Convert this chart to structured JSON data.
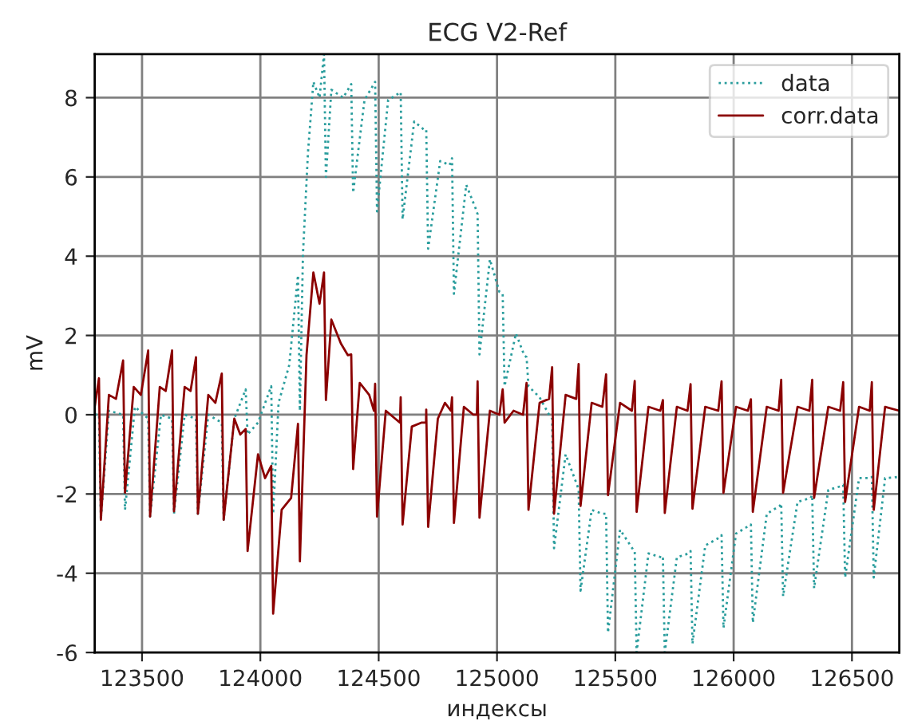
{
  "chart_data": {
    "type": "line",
    "title": "ECG V2-Ref",
    "xlabel": "индексы",
    "ylabel": "mV",
    "xlim": [
      123300,
      126700
    ],
    "xticks": [
      123500,
      124000,
      124500,
      125000,
      125500,
      126000,
      126500
    ],
    "ylim": [
      -6,
      9.1
    ],
    "yticks": [
      -6,
      -4,
      -2,
      0,
      2,
      4,
      6,
      8
    ],
    "grid": true,
    "legend": "top right",
    "series": [
      {
        "name": "data",
        "color": "#2a9d9d",
        "line_style": "dotted",
        "x": [
          123300,
          123318,
          123326,
          123360,
          123420,
          123428,
          123470,
          123526,
          123534,
          123580,
          123627,
          123635,
          123680,
          123728,
          123736,
          123780,
          123837,
          123845,
          123890,
          123938,
          123946,
          123990,
          124046,
          124054,
          124077,
          124122,
          124159,
          124167,
          124180,
          124201,
          124224,
          124250,
          124269,
          124277,
          124300,
          124350,
          124384,
          124392,
          124440,
          124485,
          124493,
          124540,
          124593,
          124601,
          124650,
          124690,
          124701,
          124709,
          124760,
          124800,
          124810,
          124818,
          124870,
          124910,
          124918,
          124926,
          124970,
          125010,
          125024,
          125032,
          125080,
          125115,
          125125,
          125133,
          125180,
          125220,
          125233,
          125241,
          125290,
          125340,
          125345,
          125353,
          125400,
          125445,
          125461,
          125469,
          125520,
          125575,
          125582,
          125590,
          125640,
          125695,
          125701,
          125709,
          125760,
          125810,
          125818,
          125826,
          125880,
          125940,
          125949,
          125957,
          126010,
          126065,
          126073,
          126081,
          126140,
          126195,
          126201,
          126209,
          126270,
          126325,
          126332,
          126340,
          126400,
          126455,
          126463,
          126471,
          126530,
          126575,
          126584,
          126592,
          126640,
          126700
        ],
        "values": [
          0.0,
          0.0,
          -2.65,
          0.1,
          0.0,
          -2.4,
          0.2,
          -0.1,
          -2.57,
          0.0,
          -0.1,
          -2.5,
          0.0,
          -0.1,
          -2.5,
          0.0,
          -0.2,
          -2.65,
          -0.1,
          0.64,
          -0.5,
          -0.2,
          0.72,
          -2.5,
          0.3,
          1.25,
          3.52,
          0.1,
          4.05,
          6.6,
          8.4,
          8.0,
          9.1,
          6.0,
          8.2,
          8.0,
          8.34,
          5.6,
          7.94,
          8.4,
          5.13,
          7.94,
          8.14,
          4.93,
          7.4,
          7.2,
          7.2,
          4.19,
          6.4,
          6.3,
          6.47,
          3.05,
          5.8,
          5.2,
          5.06,
          1.52,
          3.92,
          3.1,
          3.05,
          0.72,
          2.05,
          1.5,
          1.45,
          0.72,
          0.44,
          0.0,
          -0.1,
          -3.37,
          -1.0,
          -1.8,
          -1.9,
          -4.44,
          -2.4,
          -2.5,
          -2.5,
          -5.5,
          -2.9,
          -3.4,
          -3.44,
          -6.0,
          -3.5,
          -3.6,
          -3.57,
          -6.0,
          -3.6,
          -3.5,
          -3.44,
          -5.78,
          -3.3,
          -3.1,
          -3.04,
          -5.38,
          -3.0,
          -2.8,
          -2.77,
          -5.25,
          -2.5,
          -2.3,
          -2.24,
          -4.58,
          -2.2,
          -2.1,
          -2.03,
          -4.38,
          -1.9,
          -1.8,
          -1.77,
          -4.11,
          -1.6,
          -1.6,
          -1.57,
          -4.11,
          -1.6,
          -1.57
        ]
      },
      {
        "name": "corr.data",
        "color": "#8b0000",
        "line_style": "solid",
        "x": [
          123300,
          123318,
          123326,
          123360,
          123390,
          123420,
          123428,
          123465,
          123495,
          123526,
          123534,
          123575,
          123600,
          123627,
          123635,
          123680,
          123705,
          123728,
          123736,
          123780,
          123810,
          123837,
          123845,
          123890,
          123915,
          123938,
          123946,
          123990,
          124020,
          124046,
          124054,
          124090,
          124130,
          124159,
          124167,
          124195,
          124224,
          124250,
          124269,
          124277,
          124300,
          124340,
          124370,
          124384,
          124392,
          124420,
          124460,
          124480,
          124485,
          124493,
          124530,
          124570,
          124590,
          124593,
          124601,
          124640,
          124680,
          124700,
          124701,
          124709,
          124750,
          124780,
          124805,
          124810,
          124818,
          124860,
          124900,
          124915,
          124918,
          124926,
          124970,
          125010,
          125024,
          125032,
          125070,
          125110,
          125125,
          125133,
          125180,
          125220,
          125233,
          125241,
          125290,
          125335,
          125345,
          125353,
          125400,
          125445,
          125461,
          125469,
          125520,
          125570,
          125582,
          125590,
          125640,
          125690,
          125701,
          125709,
          125760,
          125805,
          125818,
          125826,
          125880,
          125935,
          125949,
          125957,
          126010,
          126060,
          126073,
          126081,
          126140,
          126190,
          126201,
          126209,
          126270,
          126320,
          126332,
          126340,
          126400,
          126450,
          126463,
          126471,
          126530,
          126575,
          126584,
          126592,
          126640,
          126700
        ],
        "values": [
          0.2,
          0.92,
          -2.65,
          0.5,
          0.4,
          1.37,
          -1.97,
          0.7,
          0.5,
          1.62,
          -2.57,
          0.7,
          0.6,
          1.62,
          -2.44,
          0.7,
          0.6,
          1.45,
          -2.5,
          0.5,
          0.3,
          1.04,
          -2.65,
          -0.1,
          -0.5,
          -0.36,
          -3.44,
          -1.0,
          -1.6,
          -1.29,
          -5.02,
          -2.4,
          -2.1,
          -0.23,
          -3.7,
          1.5,
          3.59,
          2.8,
          3.59,
          0.37,
          2.4,
          1.8,
          1.5,
          1.52,
          -1.37,
          0.8,
          0.5,
          0.1,
          0.78,
          -2.57,
          0.1,
          -0.1,
          -0.2,
          0.44,
          -2.77,
          -0.3,
          -0.2,
          -0.2,
          0.13,
          -2.83,
          -0.1,
          0.3,
          0.1,
          0.44,
          -2.73,
          0.2,
          0.0,
          0.0,
          0.84,
          -2.6,
          0.1,
          0.0,
          0.64,
          -0.2,
          0.1,
          0.0,
          0.8,
          -2.4,
          0.3,
          0.4,
          1.2,
          -2.5,
          0.5,
          0.4,
          1.28,
          -2.3,
          0.3,
          0.2,
          1.02,
          -2.03,
          0.3,
          0.1,
          0.85,
          -2.45,
          0.2,
          0.1,
          0.37,
          -2.48,
          0.2,
          0.1,
          0.77,
          -2.37,
          0.2,
          0.1,
          0.84,
          -1.97,
          0.2,
          0.1,
          0.39,
          -2.45,
          0.2,
          0.1,
          0.88,
          -1.97,
          0.2,
          0.1,
          0.88,
          -2.1,
          0.2,
          0.1,
          0.82,
          -2.2,
          0.2,
          0.1,
          0.82,
          -2.4,
          0.2,
          0.1
        ]
      }
    ]
  }
}
